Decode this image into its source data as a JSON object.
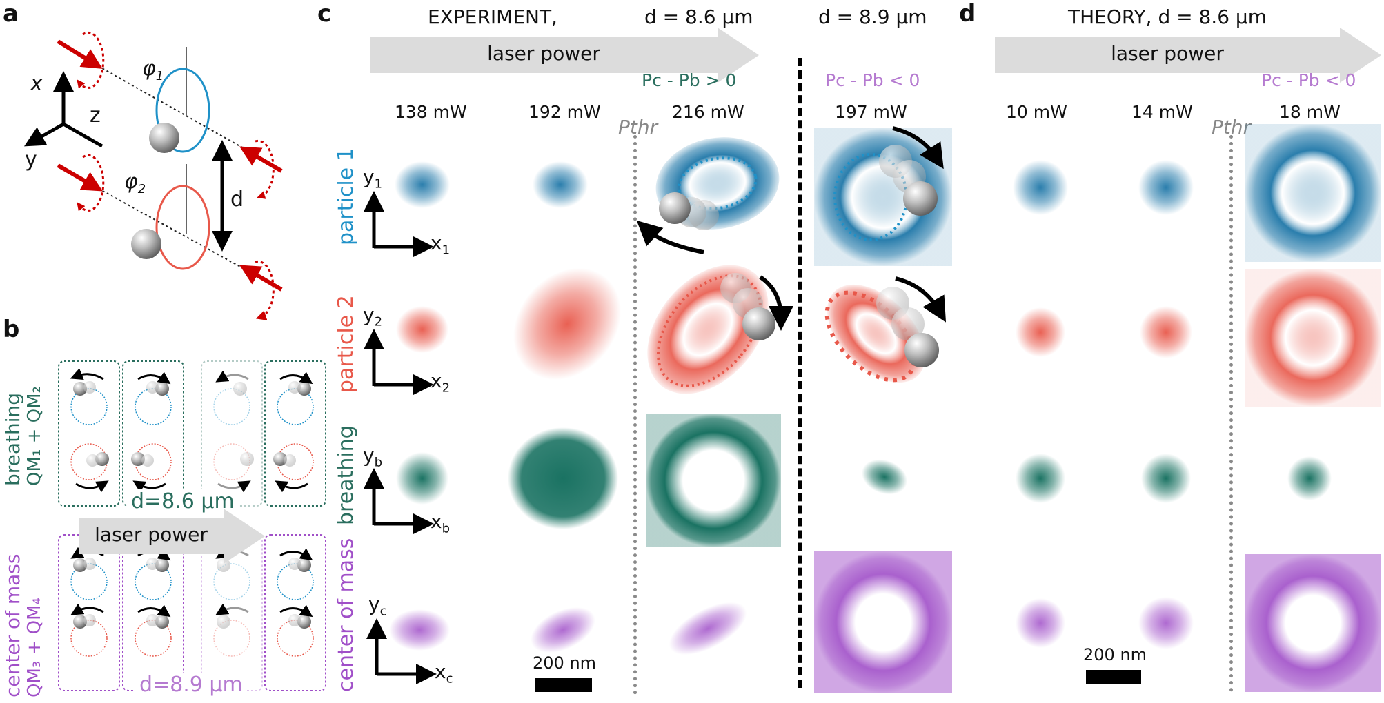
{
  "panel_a": {
    "letter": "a",
    "axis_x": "x",
    "axis_y": "y",
    "axis_z": "z",
    "phi1": "φ",
    "phi1_sub": "1",
    "phi2": "φ",
    "phi2_sub": "2",
    "distance": "d"
  },
  "panel_b": {
    "letter": "b",
    "breathing_line1": "breathing",
    "breathing_line2": "QM₁ + QM₂",
    "com_line1": "center of mass",
    "com_line2": "QM₃ + QM₄",
    "distance_top": "d=8.6 µm",
    "distance_bottom": "d=8.9 µm",
    "arrow_label": "laser power"
  },
  "panel_c": {
    "letter": "c",
    "header_experiment": "EXPERIMENT,",
    "header_d1": "d = 8.6 µm",
    "header_d2": "d = 8.9 µm",
    "arrow_label": "laser power",
    "cond_positive": "Pc - Pb > 0",
    "cond_negative": "Pc - Pb < 0",
    "powers": [
      "138 mW",
      "192 mW",
      "216 mW",
      "197 mW"
    ],
    "threshold": "Pthr",
    "row_labels": [
      "particle 1",
      "particle 2",
      "breathing",
      "center of mass"
    ],
    "axes": [
      {
        "y": "y",
        "y_sub": "1",
        "x": "x",
        "x_sub": "1"
      },
      {
        "y": "y",
        "y_sub": "2",
        "x": "x",
        "x_sub": "2"
      },
      {
        "y": "y",
        "y_sub": "b",
        "x": "x",
        "x_sub": "b"
      },
      {
        "y": "y",
        "y_sub": "c",
        "x": "x",
        "x_sub": "c"
      }
    ],
    "scale_bar": "200 nm"
  },
  "panel_d": {
    "letter": "d",
    "header": "THEORY, d = 8.6 µm",
    "arrow_label": "laser power",
    "cond_negative": "Pc - Pb < 0",
    "powers": [
      "10 mW",
      "14 mW",
      "18 mW"
    ],
    "threshold": "Pthr",
    "scale_bar": "200 nm"
  },
  "colors": {
    "particle1": "#1f77a8",
    "particle2": "#e8584a",
    "breathing": "#0e6b5a",
    "center_of_mass": "#a04fc8",
    "laser": "#cc0000",
    "text_purple": "#b57ad0",
    "text_green": "#2a6e5e"
  }
}
